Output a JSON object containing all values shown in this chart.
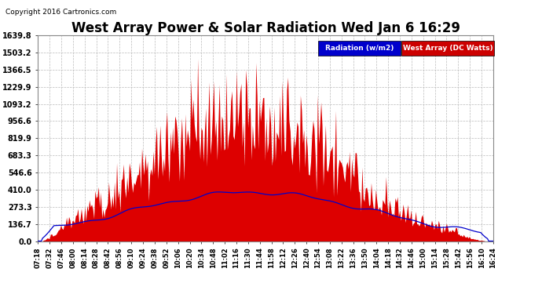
{
  "title": "West Array Power & Solar Radiation Wed Jan 6 16:29",
  "copyright": "Copyright 2016 Cartronics.com",
  "legend_radiation": "Radiation (w/m2)",
  "legend_west": "West Array (DC Watts)",
  "legend_radiation_bg": "#0000cc",
  "legend_west_bg": "#cc0000",
  "background_color": "#ffffff",
  "plot_bg": "#ffffff",
  "grid_color": "#bbbbbb",
  "yticks": [
    0.0,
    136.7,
    273.3,
    410.0,
    546.6,
    683.3,
    819.9,
    956.6,
    1093.2,
    1229.9,
    1366.5,
    1503.2,
    1639.8
  ],
  "ymax": 1639.8,
  "xtick_labels": [
    "07:18",
    "07:32",
    "07:46",
    "08:00",
    "08:14",
    "08:28",
    "08:42",
    "08:56",
    "09:10",
    "09:24",
    "09:38",
    "09:52",
    "10:06",
    "10:20",
    "10:34",
    "10:48",
    "11:02",
    "11:16",
    "11:30",
    "11:44",
    "11:58",
    "12:12",
    "12:26",
    "12:40",
    "12:54",
    "13:08",
    "13:22",
    "13:36",
    "13:50",
    "14:04",
    "14:18",
    "14:32",
    "14:46",
    "15:00",
    "15:14",
    "15:28",
    "15:42",
    "15:56",
    "16:10",
    "16:24"
  ],
  "title_fontsize": 12,
  "copyright_fontsize": 6.5,
  "tick_fontsize": 6,
  "ytick_fontsize": 7,
  "red_color": "#dd0000",
  "blue_color": "#0000cc"
}
